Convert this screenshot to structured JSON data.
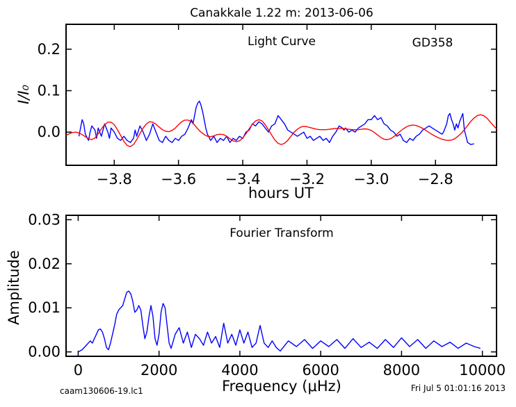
{
  "figure": {
    "title": "Canakkale 1.22 m:  2013-06-06",
    "footer_left": "caam130606-19.lc1",
    "footer_right": "Fri Jul  5 01:01:16 2013"
  },
  "chart_data": [
    {
      "type": "line",
      "panel": "light-curve",
      "annotation_title": "Light Curve",
      "annotation_star": "GD358",
      "xlabel": "hours UT",
      "ylabel": "I/I₀",
      "xlim": [
        -3.95,
        -2.61
      ],
      "ylim": [
        -0.08,
        0.26
      ],
      "xticks": [
        -3.8,
        -3.6,
        -3.4,
        -3.2,
        -3.0,
        -2.8
      ],
      "xtick_labels": [
        "−3.8",
        "−3.6",
        "−3.4",
        "−3.2",
        "−3.0",
        "−2.8"
      ],
      "yticks": [
        0.0,
        0.1,
        0.2
      ],
      "ytick_labels": [
        "0.0",
        "0.1",
        "0.2"
      ],
      "grid": false,
      "series": [
        {
          "color": "#0000ff",
          "x": [
            -3.91,
            -3.9,
            -3.895,
            -3.89,
            -3.88,
            -3.875,
            -3.87,
            -3.86,
            -3.855,
            -3.85,
            -3.84,
            -3.835,
            -3.83,
            -3.82,
            -3.815,
            -3.81,
            -3.8,
            -3.79,
            -3.78,
            -3.77,
            -3.76,
            -3.75,
            -3.74,
            -3.735,
            -3.73,
            -3.72,
            -3.71,
            -3.705,
            -3.7,
            -3.69,
            -3.68,
            -3.675,
            -3.67,
            -3.66,
            -3.65,
            -3.64,
            -3.63,
            -3.62,
            -3.61,
            -3.6,
            -3.59,
            -3.58,
            -3.57,
            -3.56,
            -3.555,
            -3.55,
            -3.545,
            -3.54,
            -3.535,
            -3.53,
            -3.525,
            -3.52,
            -3.515,
            -3.51,
            -3.5,
            -3.49,
            -3.48,
            -3.47,
            -3.46,
            -3.45,
            -3.44,
            -3.43,
            -3.42,
            -3.41,
            -3.4,
            -3.39,
            -3.38,
            -3.37,
            -3.36,
            -3.35,
            -3.34,
            -3.33,
            -3.32,
            -3.31,
            -3.3,
            -3.29,
            -3.28,
            -3.27,
            -3.26,
            -3.25,
            -3.24,
            -3.23,
            -3.22,
            -3.21,
            -3.2,
            -3.19,
            -3.18,
            -3.17,
            -3.16,
            -3.15,
            -3.14,
            -3.13,
            -3.12,
            -3.11,
            -3.1,
            -3.09,
            -3.085,
            -3.08,
            -3.07,
            -3.06,
            -3.05,
            -3.04,
            -3.03,
            -3.02,
            -3.01,
            -3.0,
            -2.99,
            -2.98,
            -2.97,
            -2.96,
            -2.95,
            -2.94,
            -2.93,
            -2.92,
            -2.91,
            -2.9,
            -2.89,
            -2.88,
            -2.87,
            -2.86,
            -2.85,
            -2.84,
            -2.83,
            -2.82,
            -2.81,
            -2.8,
            -2.79,
            -2.78,
            -2.775,
            -2.77,
            -2.765,
            -2.76,
            -2.755,
            -2.75,
            -2.745,
            -2.74,
            -2.735,
            -2.73,
            -2.725,
            -2.72,
            -2.715,
            -2.71,
            -2.7,
            -2.69,
            -2.68
          ],
          "y": [
            -0.01,
            0.03,
            0.02,
            -0.005,
            -0.02,
            0.0,
            0.015,
            0.005,
            -0.015,
            0.01,
            -0.01,
            0.005,
            0.02,
            0.0,
            -0.015,
            0.01,
            0.0,
            -0.015,
            -0.02,
            -0.01,
            -0.02,
            -0.025,
            -0.015,
            0.005,
            -0.01,
            0.015,
            0.0,
            -0.01,
            -0.02,
            -0.005,
            0.02,
            0.01,
            0.0,
            -0.02,
            -0.025,
            -0.01,
            -0.02,
            -0.025,
            -0.015,
            -0.02,
            -0.01,
            -0.005,
            0.01,
            0.03,
            0.02,
            0.04,
            0.06,
            0.07,
            0.075,
            0.065,
            0.05,
            0.03,
            0.01,
            -0.005,
            -0.02,
            -0.01,
            -0.025,
            -0.015,
            -0.02,
            -0.01,
            -0.025,
            -0.015,
            -0.02,
            -0.01,
            -0.015,
            0.0,
            0.005,
            0.02,
            0.015,
            0.025,
            0.02,
            0.01,
            0.0,
            0.015,
            0.02,
            0.04,
            0.03,
            0.02,
            0.005,
            0.0,
            -0.005,
            -0.01,
            -0.005,
            0.0,
            -0.015,
            -0.01,
            -0.02,
            -0.015,
            -0.01,
            -0.02,
            -0.015,
            -0.025,
            -0.01,
            0.0,
            0.015,
            0.01,
            0.005,
            0.01,
            0.0,
            0.005,
            0.0,
            0.01,
            0.015,
            0.02,
            0.03,
            0.03,
            0.04,
            0.03,
            0.035,
            0.02,
            0.015,
            0.005,
            0.0,
            -0.01,
            -0.005,
            -0.02,
            -0.025,
            -0.015,
            -0.02,
            -0.01,
            -0.005,
            0.005,
            0.01,
            0.015,
            0.01,
            0.005,
            0.0,
            -0.005,
            0.0,
            0.01,
            0.02,
            0.04,
            0.045,
            0.03,
            0.02,
            0.005,
            0.02,
            0.01,
            0.025,
            0.035,
            0.045,
            0.005,
            -0.025,
            -0.03,
            -0.028
          ]
        },
        {
          "color": "#ff0000",
          "x": [
            -3.95,
            -3.94,
            -3.93,
            -3.92,
            -3.91,
            -3.9,
            -3.89,
            -3.88,
            -3.87,
            -3.86,
            -3.85,
            -3.84,
            -3.83,
            -3.82,
            -3.81,
            -3.8,
            -3.79,
            -3.78,
            -3.77,
            -3.76,
            -3.75,
            -3.74,
            -3.73,
            -3.72,
            -3.71,
            -3.7,
            -3.69,
            -3.68,
            -3.67,
            -3.66,
            -3.65,
            -3.64,
            -3.63,
            -3.62,
            -3.61,
            -3.6,
            -3.59,
            -3.58,
            -3.57,
            -3.56,
            -3.55,
            -3.54,
            -3.53,
            -3.52,
            -3.51,
            -3.5,
            -3.49,
            -3.48,
            -3.47,
            -3.46,
            -3.45,
            -3.44,
            -3.43,
            -3.42,
            -3.41,
            -3.4,
            -3.39,
            -3.38,
            -3.37,
            -3.36,
            -3.35,
            -3.34,
            -3.33,
            -3.32,
            -3.31,
            -3.3,
            -3.29,
            -3.28,
            -3.27,
            -3.26,
            -3.25,
            -3.24,
            -3.23,
            -3.22,
            -3.21,
            -3.2,
            -3.19,
            -3.18,
            -3.17,
            -3.16,
            -3.15,
            -3.14,
            -3.13,
            -3.12,
            -3.11,
            -3.1,
            -3.09,
            -3.08,
            -3.07,
            -3.06,
            -3.05,
            -3.04,
            -3.03,
            -3.02,
            -3.01,
            -3.0,
            -2.99,
            -2.98,
            -2.97,
            -2.96,
            -2.95,
            -2.94,
            -2.93,
            -2.92,
            -2.91,
            -2.9,
            -2.89,
            -2.88,
            -2.87,
            -2.86,
            -2.85,
            -2.84,
            -2.83,
            -2.82,
            -2.81,
            -2.8,
            -2.79,
            -2.78,
            -2.77,
            -2.76,
            -2.75,
            -2.74,
            -2.73,
            -2.72,
            -2.71,
            -2.7,
            -2.69,
            -2.68,
            -2.67,
            -2.66,
            -2.65,
            -2.64,
            -2.63,
            -2.62,
            -2.61
          ],
          "y": [
            -0.008,
            -0.004,
            -0.001,
            0.0,
            -0.002,
            -0.006,
            -0.011,
            -0.016,
            -0.018,
            -0.014,
            -0.004,
            0.008,
            0.018,
            0.024,
            0.024,
            0.018,
            0.006,
            -0.008,
            -0.022,
            -0.032,
            -0.035,
            -0.03,
            -0.018,
            -0.004,
            0.01,
            0.02,
            0.025,
            0.024,
            0.019,
            0.012,
            0.006,
            0.002,
            0.001,
            0.004,
            0.01,
            0.018,
            0.025,
            0.029,
            0.029,
            0.025,
            0.017,
            0.008,
            0.0,
            -0.006,
            -0.01,
            -0.011,
            -0.009,
            -0.006,
            -0.005,
            -0.006,
            -0.01,
            -0.016,
            -0.021,
            -0.023,
            -0.021,
            -0.014,
            -0.004,
            0.008,
            0.019,
            0.027,
            0.03,
            0.027,
            0.018,
            0.006,
            -0.007,
            -0.019,
            -0.027,
            -0.03,
            -0.027,
            -0.02,
            -0.01,
            0.0,
            0.007,
            0.012,
            0.014,
            0.013,
            0.011,
            0.009,
            0.007,
            0.006,
            0.006,
            0.006,
            0.007,
            0.008,
            0.009,
            0.009,
            0.009,
            0.008,
            0.007,
            0.006,
            0.006,
            0.006,
            0.007,
            0.008,
            0.007,
            0.004,
            -0.001,
            -0.007,
            -0.013,
            -0.017,
            -0.018,
            -0.016,
            -0.011,
            -0.005,
            0.002,
            0.008,
            0.013,
            0.016,
            0.017,
            0.016,
            0.013,
            0.009,
            0.004,
            -0.001,
            -0.006,
            -0.01,
            -0.014,
            -0.017,
            -0.019,
            -0.02,
            -0.019,
            -0.016,
            -0.01,
            -0.003,
            0.006,
            0.016,
            0.026,
            0.034,
            0.04,
            0.042,
            0.04,
            0.034,
            0.025,
            0.016,
            0.008
          ]
        }
      ]
    },
    {
      "type": "line",
      "panel": "fourier-transform",
      "annotation_title": "Fourier Transform",
      "xlabel": "Frequency (μHz)",
      "ylabel": "Amplitude",
      "xlim": [
        -300,
        10350
      ],
      "ylim": [
        -0.001,
        0.031
      ],
      "xticks": [
        0,
        2000,
        4000,
        6000,
        8000,
        10000
      ],
      "xtick_labels": [
        "0",
        "2000",
        "4000",
        "6000",
        "8000",
        "10000"
      ],
      "yticks": [
        0.0,
        0.01,
        0.02,
        0.03
      ],
      "ytick_labels": [
        "0.00",
        "0.01",
        "0.02",
        "0.03"
      ],
      "grid": false,
      "series": [
        {
          "color": "#0000ff",
          "x": [
            0,
            100,
            200,
            300,
            350,
            400,
            450,
            500,
            550,
            600,
            650,
            700,
            750,
            800,
            850,
            900,
            950,
            1000,
            1050,
            1100,
            1150,
            1200,
            1250,
            1300,
            1350,
            1400,
            1450,
            1500,
            1550,
            1600,
            1650,
            1700,
            1750,
            1800,
            1850,
            1900,
            1950,
            2000,
            2050,
            2100,
            2150,
            2200,
            2250,
            2300,
            2400,
            2500,
            2600,
            2700,
            2800,
            2900,
            3000,
            3100,
            3200,
            3300,
            3400,
            3500,
            3600,
            3700,
            3800,
            3900,
            4000,
            4100,
            4200,
            4300,
            4400,
            4500,
            4600,
            4700,
            4800,
            4900,
            5000,
            5200,
            5400,
            5600,
            5800,
            6000,
            6200,
            6400,
            6600,
            6800,
            7000,
            7200,
            7400,
            7600,
            7800,
            8000,
            8200,
            8400,
            8600,
            8800,
            9000,
            9200,
            9400,
            9600,
            9800,
            9950
          ],
          "y": [
            0.0,
            0.0005,
            0.0015,
            0.0025,
            0.002,
            0.003,
            0.004,
            0.005,
            0.0052,
            0.0045,
            0.003,
            0.001,
            0.0005,
            0.002,
            0.004,
            0.006,
            0.0085,
            0.0095,
            0.01,
            0.0105,
            0.012,
            0.0135,
            0.0138,
            0.0132,
            0.0115,
            0.009,
            0.0095,
            0.0105,
            0.0095,
            0.006,
            0.003,
            0.0045,
            0.008,
            0.0105,
            0.008,
            0.003,
            0.0015,
            0.004,
            0.009,
            0.011,
            0.01,
            0.006,
            0.002,
            0.0008,
            0.004,
            0.0055,
            0.002,
            0.0045,
            0.001,
            0.004,
            0.003,
            0.0015,
            0.0045,
            0.002,
            0.0035,
            0.001,
            0.0065,
            0.002,
            0.004,
            0.0015,
            0.005,
            0.002,
            0.0045,
            0.001,
            0.002,
            0.006,
            0.002,
            0.001,
            0.0025,
            0.001,
            0.0002,
            0.0025,
            0.0012,
            0.0028,
            0.0008,
            0.0025,
            0.0012,
            0.0028,
            0.0008,
            0.003,
            0.001,
            0.0022,
            0.0008,
            0.0028,
            0.001,
            0.0032,
            0.0012,
            0.0028,
            0.0008,
            0.0025,
            0.0012,
            0.0022,
            0.0008,
            0.002,
            0.0012,
            0.0008
          ]
        }
      ]
    }
  ]
}
